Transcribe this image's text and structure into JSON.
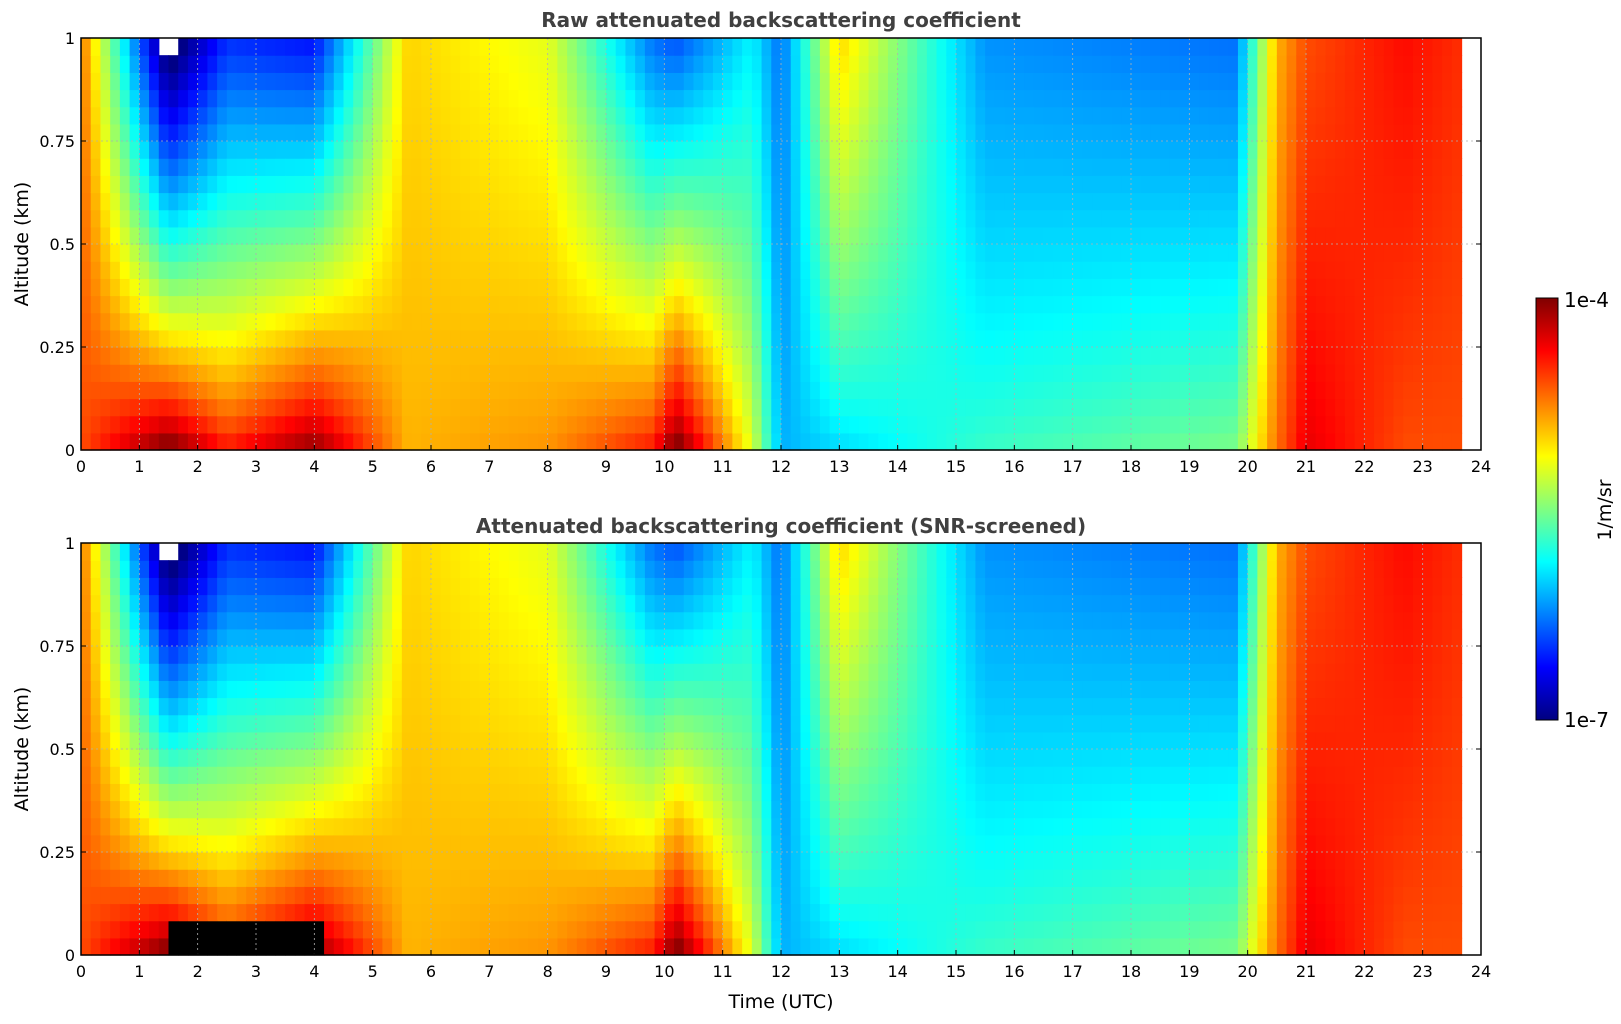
{
  "chart_data": [
    {
      "type": "heatmap",
      "title": "Raw attenuated backscattering coefficient",
      "xlabel": "",
      "ylabel": "Altitude (km)",
      "xlim": [
        0,
        24
      ],
      "ylim": [
        0,
        1
      ],
      "grid": true,
      "x_ticks": [
        "0",
        "1",
        "2",
        "3",
        "4",
        "5",
        "6",
        "7",
        "8",
        "9",
        "10",
        "11",
        "12",
        "13",
        "14",
        "15",
        "16",
        "17",
        "18",
        "19",
        "20",
        "21",
        "22",
        "23",
        "24"
      ],
      "y_ticks": [
        "0",
        "0.25",
        "0.5",
        "0.75",
        "1"
      ],
      "z_unit": "1/m/sr",
      "z_scale": "log",
      "z_range": [
        "1e-7",
        "1e-4"
      ],
      "time_breakpoints_utc": [
        0,
        1.5,
        2.5,
        4,
        5.6,
        8,
        9.8,
        10.2,
        11.5,
        12,
        13,
        15.5,
        19.8,
        20.5,
        21,
        22.7,
        23.6,
        24
      ],
      "surface_log10_beta": [
        -4.6,
        -3.9,
        -4.4,
        -4.0,
        -4.9,
        -4.8,
        -4.4,
        -3.9,
        -5.2,
        -6.1,
        -6.0,
        -5.7,
        -5.5,
        -4.7,
        -4.3,
        -4.6,
        -4.6,
        -4.6
      ],
      "top_log10_beta": [
        -4.7,
        -7.2,
        -6.5,
        -6.6,
        -5.0,
        -5.2,
        -6.3,
        -6.4,
        -5.9,
        -6.3,
        -5.0,
        -6.2,
        -6.3,
        -4.9,
        -4.6,
        -4.4,
        -4.5,
        -7.5
      ],
      "no_data_after_utc": 23.6
    },
    {
      "type": "heatmap",
      "title": "Attenuated backscattering coefficient (SNR-screened)",
      "xlabel": "Time (UTC)",
      "ylabel": "Altitude (km)",
      "xlim": [
        0,
        24
      ],
      "ylim": [
        0,
        1
      ],
      "grid": true,
      "x_ticks": [
        "0",
        "1",
        "2",
        "3",
        "4",
        "5",
        "6",
        "7",
        "8",
        "9",
        "10",
        "11",
        "12",
        "13",
        "14",
        "15",
        "16",
        "17",
        "18",
        "19",
        "20",
        "21",
        "22",
        "23",
        "24"
      ],
      "y_ticks": [
        "0",
        "0.25",
        "0.5",
        "0.75",
        "1"
      ],
      "z_unit": "1/m/sr",
      "z_scale": "log",
      "z_range": [
        "1e-7",
        "1e-4"
      ],
      "time_breakpoints_utc": [
        0,
        1.5,
        2.5,
        4,
        5.6,
        8,
        9.8,
        10.2,
        11.5,
        12,
        13,
        15.5,
        19.8,
        20.5,
        21,
        22.7,
        23.6,
        24
      ],
      "surface_log10_beta": [
        -4.6,
        -3.9,
        -4.4,
        -4.0,
        -4.9,
        -4.8,
        -4.4,
        -3.9,
        -5.2,
        -6.1,
        -6.0,
        -5.7,
        -5.5,
        -4.7,
        -4.3,
        -4.6,
        -4.6,
        -4.6
      ],
      "top_log10_beta": [
        -4.7,
        -7.2,
        -6.5,
        -6.6,
        -5.0,
        -5.2,
        -6.3,
        -6.4,
        -5.9,
        -6.3,
        -5.0,
        -6.2,
        -6.3,
        -4.9,
        -4.6,
        -4.4,
        -4.5,
        -7.5
      ],
      "no_data_after_utc": 23.6,
      "saturated_below_km_between_utc": [
        1.5,
        4.1
      ],
      "saturated_below_km": 0.08
    }
  ],
  "colorbar": {
    "label": "1/m/sr",
    "max_label": "1e-4",
    "min_label": "1e-7",
    "colormap": "jet",
    "colors": [
      "#000080",
      "#0000ff",
      "#0080ff",
      "#00ffff",
      "#80ff80",
      "#ffff00",
      "#ff8000",
      "#ff0000",
      "#800000"
    ]
  }
}
